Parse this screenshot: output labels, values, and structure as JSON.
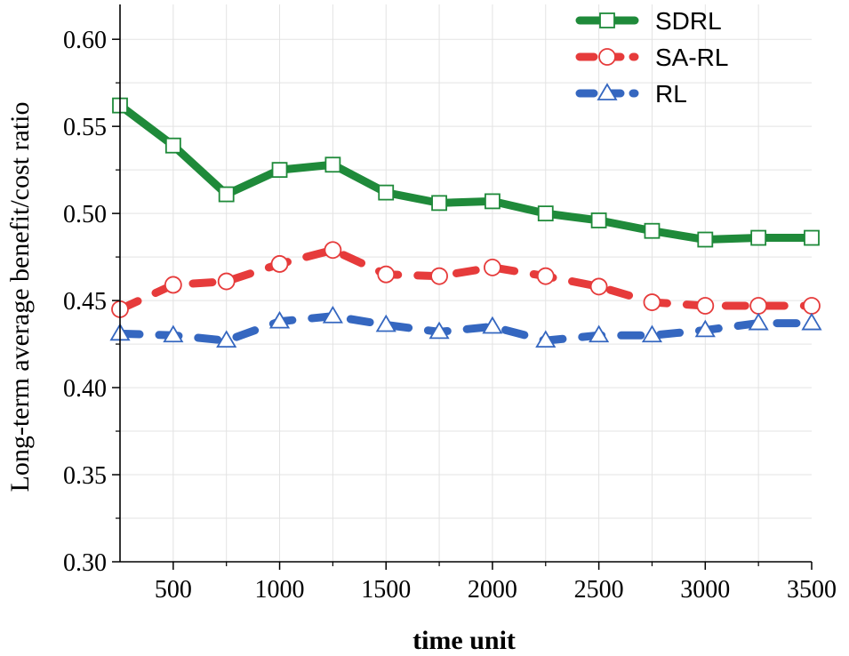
{
  "chart_data": {
    "type": "line",
    "title": "",
    "xlabel": "time unit",
    "ylabel": "Long-term average benefit/cost ratio",
    "xlim": [
      250,
      3500
    ],
    "ylim": [
      0.3,
      0.62
    ],
    "xticks": [
      500,
      1000,
      1500,
      2000,
      2500,
      3000,
      3500
    ],
    "xtick_labels": [
      "500",
      "1000",
      "1500",
      "2000",
      "2500",
      "3000",
      "3500"
    ],
    "yticks": [
      0.3,
      0.35,
      0.4,
      0.45,
      0.5,
      0.55,
      0.6
    ],
    "ytick_labels": [
      "0.30",
      "0.35",
      "0.40",
      "0.45",
      "0.50",
      "0.55",
      "0.60"
    ],
    "grid": true,
    "legend_position": "top-right",
    "x": [
      250,
      500,
      750,
      1000,
      1250,
      1500,
      1750,
      2000,
      2250,
      2500,
      2750,
      3000,
      3250,
      3500
    ],
    "series": [
      {
        "name": "SDRL",
        "color": "#1f8a3a",
        "line_style": "solid",
        "marker": "square",
        "values": [
          0.562,
          0.539,
          0.511,
          0.525,
          0.528,
          0.512,
          0.506,
          0.507,
          0.5,
          0.496,
          0.49,
          0.485,
          0.486,
          0.486
        ]
      },
      {
        "name": "SA-RL",
        "color": "#e63b3b",
        "line_style": "dashed",
        "marker": "circle",
        "values": [
          0.445,
          0.459,
          0.461,
          0.471,
          0.479,
          0.465,
          0.464,
          0.469,
          0.464,
          0.458,
          0.449,
          0.447,
          0.447,
          0.447
        ]
      },
      {
        "name": "RL",
        "color": "#3567c0",
        "line_style": "dashed",
        "marker": "triangle",
        "values": [
          0.431,
          0.43,
          0.427,
          0.438,
          0.441,
          0.436,
          0.432,
          0.435,
          0.427,
          0.43,
          0.43,
          0.433,
          0.437,
          0.437
        ]
      }
    ]
  }
}
